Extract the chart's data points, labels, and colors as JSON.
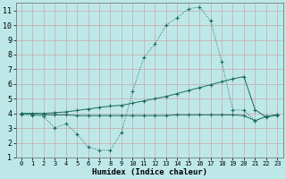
{
  "xlabel": "Humidex (Indice chaleur)",
  "xlim": [
    -0.5,
    23.5
  ],
  "ylim": [
    1,
    11.5
  ],
  "xticks": [
    0,
    1,
    2,
    3,
    4,
    5,
    6,
    7,
    8,
    9,
    10,
    11,
    12,
    13,
    14,
    15,
    16,
    17,
    18,
    19,
    20,
    21,
    22,
    23
  ],
  "yticks": [
    1,
    2,
    3,
    4,
    5,
    6,
    7,
    8,
    9,
    10,
    11
  ],
  "background_color": "#bee8e8",
  "grid_color": "#c8a8a8",
  "line_color": "#1a6b5a",
  "curve1_x": [
    0,
    1,
    2,
    3,
    4,
    5,
    6,
    7,
    8,
    9,
    10,
    11,
    12,
    13,
    14,
    15,
    16,
    17,
    18,
    19,
    20,
    21,
    22,
    23
  ],
  "curve1_y": [
    3.9,
    3.85,
    3.8,
    3.0,
    3.3,
    2.6,
    1.7,
    1.5,
    1.5,
    2.7,
    5.5,
    7.8,
    8.7,
    10.0,
    10.5,
    11.1,
    11.25,
    10.3,
    7.5,
    4.25,
    4.2,
    3.5,
    3.8,
    3.85
  ],
  "curve2_x": [
    0,
    1,
    2,
    3,
    4,
    5,
    6,
    7,
    8,
    9,
    10,
    11,
    12,
    13,
    14,
    15,
    16,
    17,
    18,
    19,
    20,
    21,
    22,
    23
  ],
  "curve2_y": [
    4.0,
    4.0,
    4.0,
    4.05,
    4.1,
    4.2,
    4.3,
    4.4,
    4.5,
    4.55,
    4.7,
    4.85,
    5.0,
    5.15,
    5.35,
    5.55,
    5.75,
    5.95,
    6.15,
    6.35,
    6.5,
    4.25,
    3.75,
    3.9
  ],
  "curve3_x": [
    0,
    1,
    2,
    3,
    4,
    5,
    6,
    7,
    8,
    9,
    10,
    11,
    12,
    13,
    14,
    15,
    16,
    17,
    18,
    19,
    20,
    21,
    22,
    23
  ],
  "curve3_y": [
    4.0,
    3.95,
    3.9,
    3.9,
    3.9,
    3.85,
    3.85,
    3.85,
    3.85,
    3.85,
    3.85,
    3.85,
    3.85,
    3.85,
    3.9,
    3.9,
    3.9,
    3.9,
    3.9,
    3.9,
    3.85,
    3.5,
    3.8,
    3.9
  ]
}
